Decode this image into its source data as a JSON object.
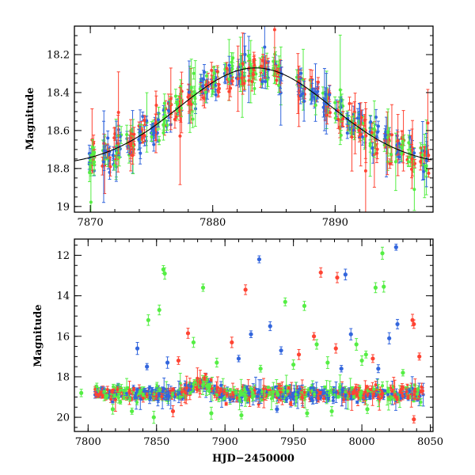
{
  "chart_data": [
    {
      "type": "scatter",
      "panel": "top",
      "xlabel": "",
      "ylabel": "Magnitude",
      "xlim": [
        7868.7,
        7898.0
      ],
      "ylim": [
        19.03,
        18.05
      ],
      "y_inverted": true,
      "x_ticks": [
        7870,
        7880,
        7890
      ],
      "x_tick_labels": [
        "7870",
        "7880",
        "7890"
      ],
      "y_ticks": [
        18.2,
        18.4,
        18.6,
        18.8,
        19
      ],
      "y_tick_labels": [
        "18.2",
        "18.4",
        "18.6",
        "18.8",
        "19"
      ],
      "series": [
        {
          "color": "#3366dd",
          "values_desc": "blue photometric band"
        },
        {
          "color": "#55ee44",
          "values_desc": "green photometric band"
        },
        {
          "color": "#ff4433",
          "values_desc": "red photometric band"
        }
      ],
      "model_curve": {
        "color": "#000000",
        "min_mag": 18.79,
        "max_mag": 18.27,
        "peak_hjd": 7883.5,
        "width_days": 6.2
      },
      "nights": [
        7870.2,
        7871.3,
        7872.2,
        7873.3,
        7874.3,
        7875.3,
        7876.3,
        7877.2,
        7878.3,
        7879.3,
        7880.2,
        7881.3,
        7882.3,
        7883.2,
        7884.2,
        7885.3,
        7887.2,
        7888.3,
        7889.3,
        7890.3,
        7891.3,
        7892.2,
        7893.2,
        7894.3,
        7895.3,
        7896.2,
        7897.3
      ]
    },
    {
      "type": "scatter",
      "panel": "bottom",
      "xlabel": "HJD−2450000",
      "ylabel": "Magnitude",
      "xlim": [
        7790,
        8052
      ],
      "ylim": [
        20.7,
        11.2
      ],
      "y_inverted": true,
      "x_ticks": [
        7800,
        7850,
        7900,
        7950,
        8000,
        8050
      ],
      "x_tick_labels": [
        "7800",
        "7850",
        "7900",
        "7950",
        "8000",
        "8050"
      ],
      "y_ticks": [
        12,
        14,
        16,
        18,
        20
      ],
      "y_tick_labels": [
        "12",
        "14",
        "16",
        "18",
        "20"
      ],
      "baseline_mag": 18.85,
      "hjd_range": [
        7805,
        8045
      ],
      "outliers": [
        {
          "x": 7855,
          "y": 12.7,
          "color": "#55ee44"
        },
        {
          "x": 7856,
          "y": 12.9,
          "color": "#55ee44"
        },
        {
          "x": 7925,
          "y": 12.2,
          "color": "#3366dd"
        },
        {
          "x": 7970,
          "y": 12.85,
          "color": "#ff4433"
        },
        {
          "x": 7982,
          "y": 13.1,
          "color": "#ff4433"
        },
        {
          "x": 7988,
          "y": 12.95,
          "color": "#3366dd"
        },
        {
          "x": 8015,
          "y": 11.9,
          "color": "#55ee44"
        },
        {
          "x": 8025,
          "y": 11.6,
          "color": "#3366dd"
        },
        {
          "x": 7852,
          "y": 14.7,
          "color": "#55ee44"
        },
        {
          "x": 7884,
          "y": 13.6,
          "color": "#55ee44"
        },
        {
          "x": 7915,
          "y": 13.7,
          "color": "#ff4433"
        },
        {
          "x": 7944,
          "y": 14.3,
          "color": "#55ee44"
        },
        {
          "x": 7958,
          "y": 14.5,
          "color": "#55ee44"
        },
        {
          "x": 8010,
          "y": 13.6,
          "color": "#55ee44"
        },
        {
          "x": 8016,
          "y": 13.55,
          "color": "#55ee44"
        },
        {
          "x": 8037,
          "y": 15.2,
          "color": "#ff4433"
        },
        {
          "x": 8038,
          "y": 15.4,
          "color": "#ff4433"
        },
        {
          "x": 8026,
          "y": 15.4,
          "color": "#3366dd"
        },
        {
          "x": 7844,
          "y": 15.2,
          "color": "#55ee44"
        },
        {
          "x": 7836,
          "y": 16.6,
          "color": "#3366dd"
        },
        {
          "x": 7843,
          "y": 17.5,
          "color": "#3366dd"
        },
        {
          "x": 7873,
          "y": 15.85,
          "color": "#ff4433"
        },
        {
          "x": 7877,
          "y": 16.3,
          "color": "#55ee44"
        },
        {
          "x": 7905,
          "y": 16.3,
          "color": "#ff4433"
        },
        {
          "x": 7919,
          "y": 15.9,
          "color": "#3366dd"
        },
        {
          "x": 7933,
          "y": 15.5,
          "color": "#3366dd"
        },
        {
          "x": 7941,
          "y": 16.7,
          "color": "#3366dd"
        },
        {
          "x": 7954,
          "y": 16.9,
          "color": "#ff4433"
        },
        {
          "x": 7965,
          "y": 16.0,
          "color": "#ff4433"
        },
        {
          "x": 7967,
          "y": 16.4,
          "color": "#55ee44"
        },
        {
          "x": 7981,
          "y": 16.6,
          "color": "#ff4433"
        },
        {
          "x": 7992,
          "y": 15.9,
          "color": "#3366dd"
        },
        {
          "x": 7996,
          "y": 16.4,
          "color": "#55ee44"
        },
        {
          "x": 8003,
          "y": 16.9,
          "color": "#55ee44"
        },
        {
          "x": 8008,
          "y": 17.1,
          "color": "#ff4433"
        },
        {
          "x": 8020,
          "y": 16.1,
          "color": "#3366dd"
        },
        {
          "x": 8042,
          "y": 17.0,
          "color": "#ff4433"
        },
        {
          "x": 7858,
          "y": 17.3,
          "color": "#3366dd"
        },
        {
          "x": 7866,
          "y": 17.2,
          "color": "#ff4433"
        },
        {
          "x": 7894,
          "y": 17.3,
          "color": "#55ee44"
        },
        {
          "x": 7910,
          "y": 17.1,
          "color": "#3366dd"
        },
        {
          "x": 7926,
          "y": 17.6,
          "color": "#55ee44"
        },
        {
          "x": 7950,
          "y": 17.4,
          "color": "#55ee44"
        },
        {
          "x": 7975,
          "y": 17.3,
          "color": "#55ee44"
        },
        {
          "x": 7985,
          "y": 17.6,
          "color": "#3366dd"
        },
        {
          "x": 8000,
          "y": 17.2,
          "color": "#55ee44"
        },
        {
          "x": 8012,
          "y": 17.6,
          "color": "#3366dd"
        },
        {
          "x": 8030,
          "y": 17.8,
          "color": "#55ee44"
        },
        {
          "x": 7818,
          "y": 19.6,
          "color": "#55ee44"
        },
        {
          "x": 7832,
          "y": 19.7,
          "color": "#55ee44"
        },
        {
          "x": 7848,
          "y": 20.0,
          "color": "#55ee44"
        },
        {
          "x": 7862,
          "y": 19.7,
          "color": "#ff4433"
        },
        {
          "x": 7890,
          "y": 19.8,
          "color": "#55ee44"
        },
        {
          "x": 7912,
          "y": 19.9,
          "color": "#55ee44"
        },
        {
          "x": 7938,
          "y": 19.6,
          "color": "#3366dd"
        },
        {
          "x": 7960,
          "y": 19.8,
          "color": "#55ee44"
        },
        {
          "x": 7978,
          "y": 19.7,
          "color": "#55ee44"
        },
        {
          "x": 8004,
          "y": 19.6,
          "color": "#55ee44"
        },
        {
          "x": 8038,
          "y": 20.1,
          "color": "#ff4433"
        },
        {
          "x": 7795,
          "y": 18.8,
          "color": "#55ee44"
        }
      ]
    }
  ]
}
